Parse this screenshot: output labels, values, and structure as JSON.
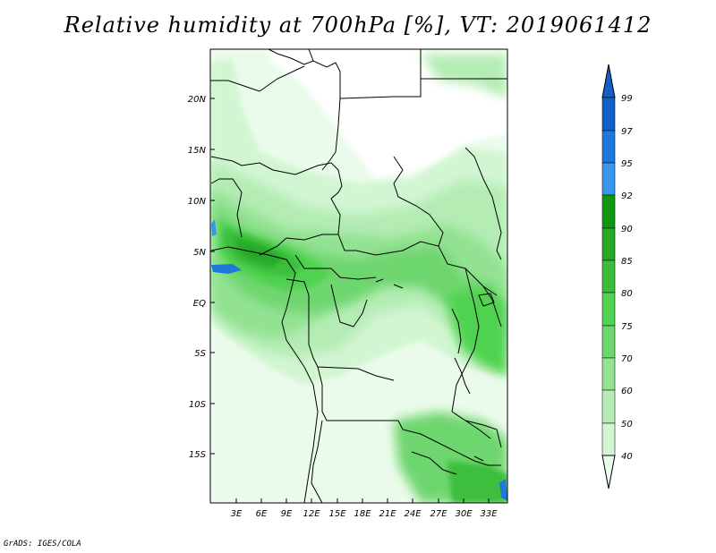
{
  "title": "Relative humidity at 700hPa [%], VT: 2019061412",
  "footer": "GrADS: IGES/COLA",
  "map": {
    "lat_labels": [
      "20N",
      "15N",
      "10N",
      "5N",
      "EQ",
      "5S",
      "10S",
      "15S"
    ],
    "lon_labels": [
      "3E",
      "6E",
      "9E",
      "12E",
      "15E",
      "18E",
      "21E",
      "24E",
      "27E",
      "30E",
      "33E"
    ]
  },
  "colorbar": {
    "labels": [
      "99",
      "97",
      "95",
      "92",
      "90",
      "85",
      "80",
      "75",
      "70",
      "60",
      "50",
      "40"
    ],
    "colors": {
      "99": "#1460c8",
      "97": "#1e78dc",
      "95": "#3a96ec",
      "92": "#0f960f",
      "90": "#28aa28",
      "85": "#3cbe3c",
      "80": "#50d250",
      "75": "#6ed66e",
      "70": "#92e292",
      "60": "#b4ecb4",
      "50": "#d2f6d2",
      "40": "#ebfbeb"
    }
  },
  "colors": {
    "land": "#ffffff",
    "border": "#000000",
    "water": "#1e78dc"
  }
}
